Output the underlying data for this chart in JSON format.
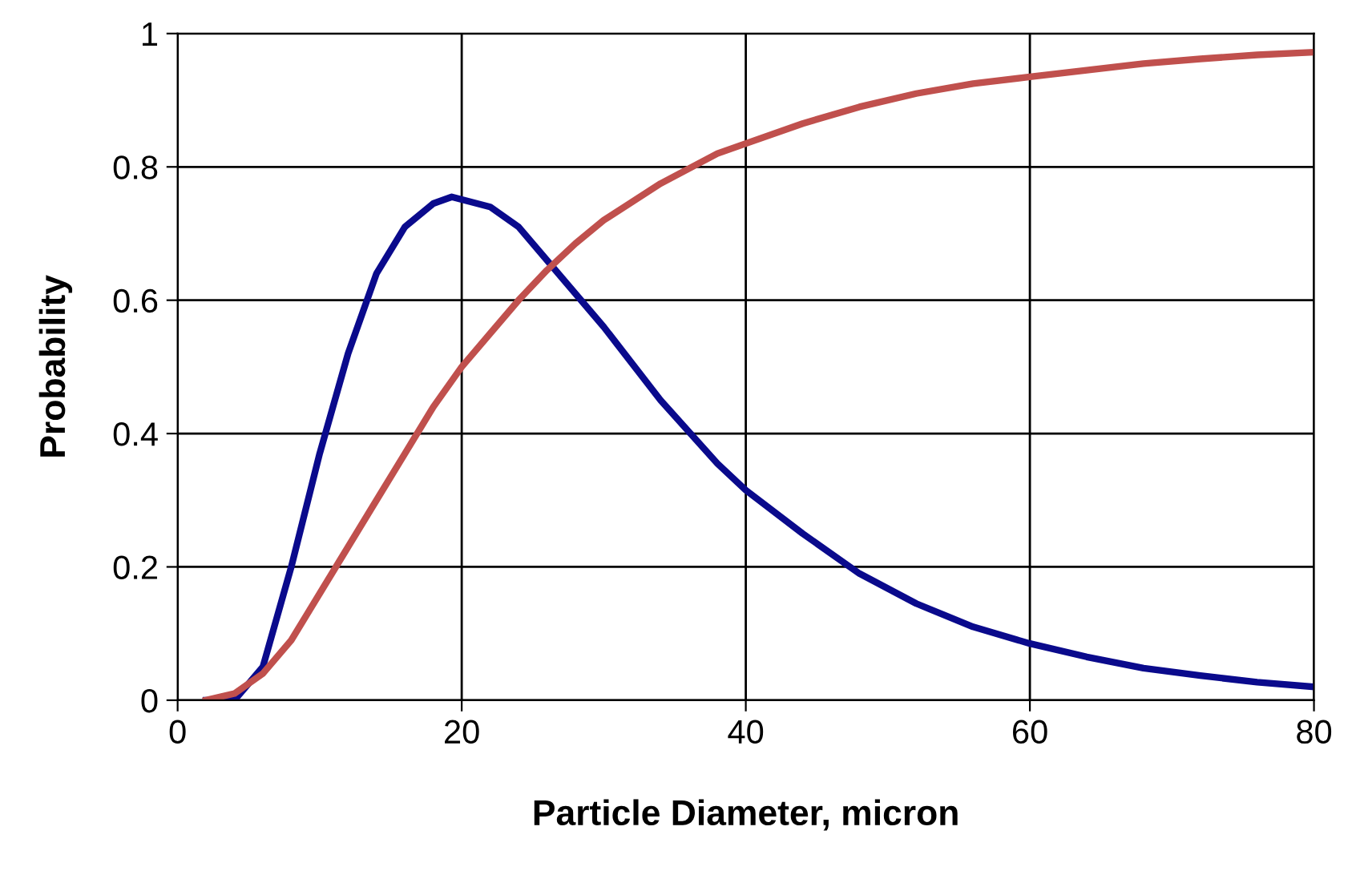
{
  "chart_data": {
    "type": "line",
    "xlabel": "Particle Diameter, micron",
    "ylabel": "Probability",
    "xlim": [
      0,
      80
    ],
    "ylim": [
      0,
      1
    ],
    "xticks": [
      0,
      20,
      40,
      60,
      80
    ],
    "yticks": [
      0,
      0.2,
      0.4,
      0.6,
      0.8,
      1
    ],
    "grid": true,
    "line_style": "solid",
    "marker": "none",
    "series": [
      {
        "color": "#0a0a8c",
        "x": [
          2,
          4,
          6,
          8,
          10,
          12,
          14,
          16,
          18,
          19.3,
          22,
          24,
          26,
          30,
          34,
          38,
          40,
          44,
          48,
          52,
          56,
          60,
          64,
          68,
          72,
          76,
          80
        ],
        "values": [
          0,
          0,
          0.05,
          0.2,
          0.37,
          0.52,
          0.64,
          0.71,
          0.745,
          0.755,
          0.74,
          0.71,
          0.66,
          0.56,
          0.45,
          0.355,
          0.315,
          0.25,
          0.19,
          0.145,
          0.11,
          0.085,
          0.065,
          0.048,
          0.037,
          0.027,
          0.02
        ]
      },
      {
        "color": "#c0504d",
        "x": [
          2,
          4,
          6,
          8,
          10,
          12,
          14,
          16,
          18,
          20,
          22,
          24,
          26,
          28,
          30,
          34,
          38,
          40,
          44,
          48,
          52,
          56,
          60,
          64,
          68,
          72,
          76,
          80
        ],
        "values": [
          0,
          0.01,
          0.04,
          0.09,
          0.16,
          0.23,
          0.3,
          0.37,
          0.44,
          0.5,
          0.55,
          0.6,
          0.645,
          0.685,
          0.72,
          0.775,
          0.82,
          0.835,
          0.865,
          0.89,
          0.91,
          0.925,
          0.935,
          0.945,
          0.955,
          0.962,
          0.968,
          0.972
        ]
      }
    ]
  }
}
